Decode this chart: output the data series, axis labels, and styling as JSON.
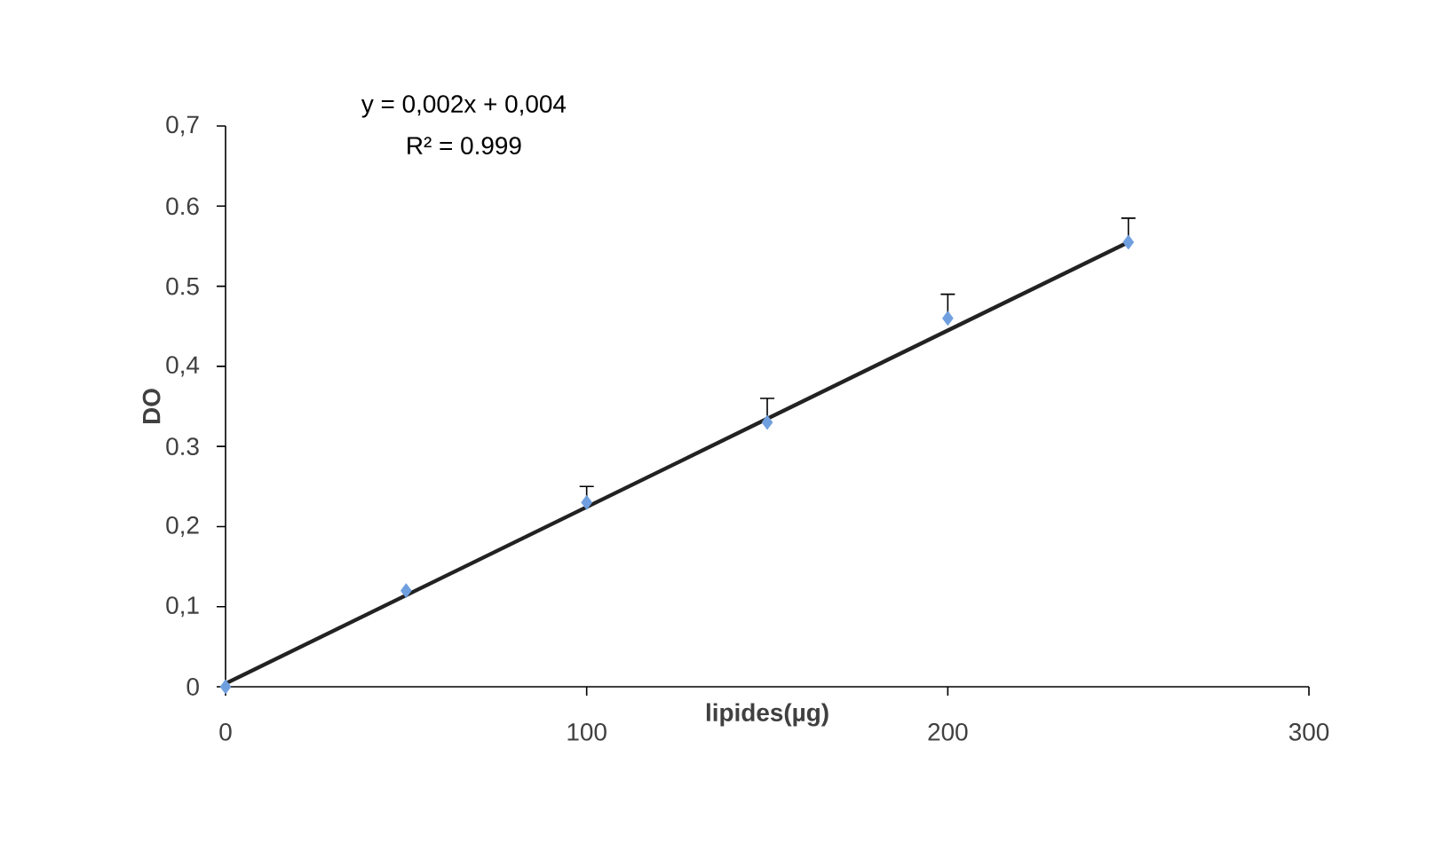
{
  "chart_data": {
    "type": "scatter",
    "xlabel": "lipides(µg)",
    "ylabel": "DO",
    "annotations": [
      "y = 0,002x + 0,004",
      "R² = 0.999"
    ],
    "xlim": [
      0,
      300
    ],
    "xticks": [
      0,
      100,
      200,
      300
    ],
    "ylim": [
      0,
      0.7
    ],
    "yticks": [
      0,
      {
        "value": 0.1,
        "label": "0,1"
      },
      {
        "value": 0.2,
        "label": "0,2"
      },
      {
        "value": 0.3,
        "label": "0.3"
      },
      {
        "value": 0.4,
        "label": "0,4"
      },
      {
        "value": 0.5,
        "label": "0.5"
      },
      {
        "value": 0.6,
        "label": "0.6"
      },
      {
        "value": 0.7,
        "label": "0,7"
      }
    ],
    "grid": false,
    "legend": false,
    "series": [
      {
        "color": "#6f9fdf",
        "marker": "diamond",
        "x": [
          0,
          50,
          100,
          150,
          200,
          250
        ],
        "values": [
          0,
          0.12,
          0.23,
          0.33,
          0.46,
          0.555
        ],
        "errors": [
          null,
          null,
          [
            0.23,
            0.25
          ],
          [
            0.33,
            0.36
          ],
          [
            0.46,
            0.49
          ],
          [
            0.555,
            0.585
          ]
        ]
      },
      {
        "type": "line",
        "color": "#222222",
        "marker": "none",
        "line_style": "solid",
        "x": [
          0,
          250
        ],
        "values": [
          0.004,
          0.555
        ]
      }
    ]
  }
}
